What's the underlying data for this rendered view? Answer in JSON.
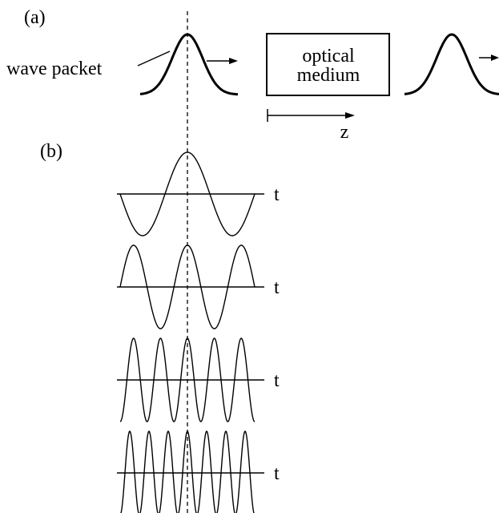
{
  "panel_a": {
    "label": "(a)",
    "packet_label": "wave packet",
    "medium_line1": "optical",
    "medium_line2": "medium",
    "axis_label": "z"
  },
  "panel_b": {
    "label": "(b)",
    "waves": [
      {
        "axis_label": "t",
        "cycles": 1.5
      },
      {
        "axis_label": "t",
        "cycles": 2.5
      },
      {
        "axis_label": "t",
        "cycles": 5
      },
      {
        "axis_label": "t",
        "cycles": 7
      }
    ]
  }
}
